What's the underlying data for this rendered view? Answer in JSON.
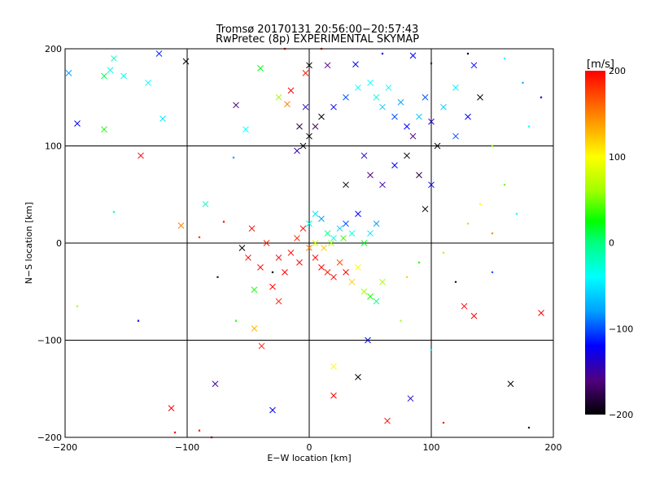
{
  "chart_data": {
    "type": "scatter",
    "title": "Tromsø 20170131 20:56:00−20:57:43",
    "subtitle": "RwPretec (8p) EXPERIMENTAL SKYMAP",
    "xlabel": "E−W location [km]",
    "ylabel": "N−S location [km]",
    "xlim": [
      -200,
      200
    ],
    "ylim": [
      -200,
      200
    ],
    "xticks": [
      -200,
      -100,
      0,
      100,
      200
    ],
    "yticks": [
      -200,
      -100,
      0,
      100,
      200
    ],
    "xtick_labels": [
      "−200",
      "−100",
      "0",
      "100",
      "200"
    ],
    "ytick_labels": [
      "−200",
      "−100",
      "0",
      "100",
      "200"
    ],
    "grid": true,
    "colorbar": {
      "label": "[m/s]",
      "range": [
        -200,
        200
      ],
      "ticks": [
        200,
        100,
        0,
        -100,
        -200
      ],
      "tick_labels": [
        "200",
        "100",
        "0",
        "−100",
        "−200"
      ],
      "colormap": [
        [
          -200,
          "#000000"
        ],
        [
          -160,
          "#500080"
        ],
        [
          -120,
          "#0000ff"
        ],
        [
          -80,
          "#00a0ff"
        ],
        [
          -40,
          "#00ffff"
        ],
        [
          0,
          "#00ff80"
        ],
        [
          25,
          "#00ff00"
        ],
        [
          60,
          "#a0ff00"
        ],
        [
          100,
          "#ffff00"
        ],
        [
          150,
          "#ff8000"
        ],
        [
          200,
          "#ff0000"
        ]
      ]
    },
    "series_note_marker": "x = large cross, . = small mark",
    "points": [
      [
        -197,
        175,
        -80,
        "x"
      ],
      [
        -190,
        123,
        -120,
        "x"
      ],
      [
        -160,
        190,
        -20,
        "x"
      ],
      [
        -168,
        172,
        10,
        "x"
      ],
      [
        -163,
        178,
        -30,
        "x"
      ],
      [
        -152,
        172,
        -40,
        "x"
      ],
      [
        -132,
        165,
        -40,
        "x"
      ],
      [
        -123,
        195,
        -110,
        "x"
      ],
      [
        -120,
        128,
        -50,
        "x"
      ],
      [
        -168,
        117,
        30,
        "x"
      ],
      [
        -138,
        90,
        200,
        "x"
      ],
      [
        -101,
        187,
        -200,
        "x"
      ],
      [
        -60,
        142,
        -160,
        "x"
      ],
      [
        -52,
        117,
        -40,
        "x"
      ],
      [
        -40,
        180,
        20,
        "x"
      ],
      [
        -25,
        150,
        60,
        "x"
      ],
      [
        -18,
        143,
        150,
        "x"
      ],
      [
        -15,
        157,
        200,
        "x"
      ],
      [
        -3,
        175,
        190,
        "x"
      ],
      [
        0,
        183,
        -200,
        "x"
      ],
      [
        15,
        183,
        -160,
        "x"
      ],
      [
        38,
        184,
        -120,
        "x"
      ],
      [
        85,
        193,
        -120,
        "x"
      ],
      [
        135,
        183,
        -120,
        "x"
      ],
      [
        -113,
        -170,
        200,
        "x"
      ],
      [
        -30,
        -172,
        -120,
        "x"
      ],
      [
        -77,
        -145,
        -150,
        "x"
      ],
      [
        -39,
        -106,
        190,
        "x"
      ],
      [
        -45,
        -88,
        130,
        "x"
      ],
      [
        40,
        -138,
        -200,
        "x"
      ],
      [
        48,
        -100,
        -120,
        "x"
      ],
      [
        83,
        -160,
        -140,
        "x"
      ],
      [
        64,
        -183,
        200,
        "x"
      ],
      [
        20,
        -157,
        200,
        "x"
      ],
      [
        20,
        -127,
        100,
        "x"
      ],
      [
        127,
        -65,
        200,
        "x"
      ],
      [
        135,
        -75,
        200,
        "x"
      ],
      [
        190,
        -72,
        200,
        "x"
      ],
      [
        165,
        -145,
        -200,
        "x"
      ],
      [
        -55,
        -5,
        -200,
        "x"
      ],
      [
        -50,
        -15,
        200,
        "x"
      ],
      [
        -45,
        -48,
        30,
        "x"
      ],
      [
        -30,
        -45,
        200,
        "x"
      ],
      [
        -25,
        -60,
        190,
        "x"
      ],
      [
        -20,
        -30,
        200,
        "x"
      ],
      [
        -15,
        -10,
        200,
        "x"
      ],
      [
        -10,
        5,
        180,
        "x"
      ],
      [
        -5,
        15,
        200,
        "x"
      ],
      [
        0,
        -5,
        150,
        "x"
      ],
      [
        5,
        -15,
        200,
        "x"
      ],
      [
        10,
        -25,
        200,
        "x"
      ],
      [
        15,
        -30,
        190,
        "x"
      ],
      [
        20,
        -35,
        200,
        "x"
      ],
      [
        25,
        -20,
        170,
        "x"
      ],
      [
        30,
        -30,
        200,
        "x"
      ],
      [
        35,
        -40,
        120,
        "x"
      ],
      [
        40,
        -25,
        100,
        "x"
      ],
      [
        45,
        -50,
        60,
        "x"
      ],
      [
        50,
        -55,
        30,
        "x"
      ],
      [
        55,
        -60,
        0,
        "x"
      ],
      [
        0,
        20,
        -30,
        "x"
      ],
      [
        5,
        30,
        -50,
        "x"
      ],
      [
        10,
        25,
        -80,
        "x"
      ],
      [
        15,
        10,
        0,
        "x"
      ],
      [
        20,
        5,
        -40,
        "x"
      ],
      [
        25,
        15,
        -60,
        "x"
      ],
      [
        30,
        20,
        -100,
        "x"
      ],
      [
        35,
        10,
        -30,
        "x"
      ],
      [
        40,
        30,
        -120,
        "x"
      ],
      [
        45,
        0,
        20,
        "x"
      ],
      [
        50,
        10,
        -50,
        "x"
      ],
      [
        55,
        20,
        -80,
        "x"
      ],
      [
        5,
        0,
        80,
        "x"
      ],
      [
        12,
        -5,
        120,
        "x"
      ],
      [
        18,
        0,
        60,
        "x"
      ],
      [
        28,
        5,
        40,
        "x"
      ],
      [
        -8,
        -20,
        200,
        "x"
      ],
      [
        60,
        -40,
        60,
        "x"
      ],
      [
        -5,
        100,
        -200,
        "x"
      ],
      [
        0,
        110,
        -200,
        "x"
      ],
      [
        -10,
        95,
        -150,
        "x"
      ],
      [
        5,
        120,
        -170,
        "x"
      ],
      [
        10,
        130,
        -200,
        "x"
      ],
      [
        20,
        140,
        -120,
        "x"
      ],
      [
        -8,
        120,
        -180,
        "x"
      ],
      [
        -3,
        140,
        -140,
        "x"
      ],
      [
        30,
        150,
        -100,
        "x"
      ],
      [
        40,
        160,
        -40,
        "x"
      ],
      [
        50,
        165,
        -40,
        "x"
      ],
      [
        55,
        150,
        -30,
        "x"
      ],
      [
        60,
        140,
        -60,
        "x"
      ],
      [
        65,
        160,
        -40,
        "x"
      ],
      [
        70,
        130,
        -100,
        "x"
      ],
      [
        75,
        145,
        -80,
        "x"
      ],
      [
        80,
        120,
        -120,
        "x"
      ],
      [
        85,
        110,
        -160,
        "x"
      ],
      [
        90,
        130,
        -60,
        "x"
      ],
      [
        95,
        150,
        -100,
        "x"
      ],
      [
        100,
        125,
        -140,
        "x"
      ],
      [
        110,
        140,
        -60,
        "x"
      ],
      [
        120,
        160,
        -50,
        "x"
      ],
      [
        105,
        100,
        -200,
        "x"
      ],
      [
        60,
        60,
        -150,
        "x"
      ],
      [
        70,
        80,
        -120,
        "x"
      ],
      [
        80,
        90,
        -200,
        "x"
      ],
      [
        90,
        70,
        -180,
        "x"
      ],
      [
        100,
        60,
        -120,
        "x"
      ],
      [
        95,
        35,
        -200,
        "x"
      ],
      [
        45,
        90,
        -140,
        "x"
      ],
      [
        50,
        70,
        -160,
        "x"
      ],
      [
        30,
        60,
        -200,
        "x"
      ],
      [
        120,
        110,
        -100,
        "x"
      ],
      [
        140,
        150,
        -200,
        "x"
      ],
      [
        130,
        130,
        -120,
        "x"
      ],
      [
        -85,
        40,
        -20,
        "x"
      ],
      [
        -105,
        18,
        150,
        "x"
      ],
      [
        -47,
        15,
        200,
        "x"
      ],
      [
        -40,
        -25,
        200,
        "x"
      ],
      [
        -35,
        0,
        190,
        "x"
      ],
      [
        -25,
        -15,
        200,
        "x"
      ],
      [
        -190,
        -65,
        60,
        "."
      ],
      [
        -160,
        32,
        0,
        "."
      ],
      [
        -140,
        -80,
        -120,
        "."
      ],
      [
        -110,
        -195,
        200,
        "."
      ],
      [
        -90,
        -193,
        200,
        "."
      ],
      [
        -80,
        -200,
        200,
        "."
      ],
      [
        -62,
        88,
        -80,
        "."
      ],
      [
        -75,
        -35,
        -200,
        "."
      ],
      [
        -70,
        22,
        200,
        "."
      ],
      [
        -90,
        6,
        190,
        "."
      ],
      [
        -60,
        -80,
        30,
        "."
      ],
      [
        -30,
        -30,
        -200,
        "."
      ],
      [
        75,
        -80,
        60,
        "."
      ],
      [
        100,
        -110,
        -40,
        "."
      ],
      [
        110,
        -185,
        200,
        "."
      ],
      [
        120,
        -40,
        -200,
        "."
      ],
      [
        150,
        -30,
        -100,
        "."
      ],
      [
        180,
        -190,
        -200,
        "."
      ],
      [
        150,
        100,
        60,
        "."
      ],
      [
        160,
        60,
        40,
        "."
      ],
      [
        170,
        30,
        -40,
        "."
      ],
      [
        180,
        120,
        -40,
        "."
      ],
      [
        190,
        150,
        -120,
        "."
      ],
      [
        175,
        165,
        -80,
        "."
      ],
      [
        140,
        40,
        100,
        "."
      ],
      [
        130,
        20,
        60,
        "."
      ],
      [
        150,
        10,
        150,
        "."
      ],
      [
        110,
        -10,
        60,
        "."
      ],
      [
        90,
        -20,
        30,
        "."
      ],
      [
        80,
        -35,
        120,
        "."
      ],
      [
        -20,
        200,
        200,
        "."
      ],
      [
        10,
        200,
        200,
        "."
      ],
      [
        60,
        195,
        -120,
        "."
      ],
      [
        100,
        185,
        -160,
        "."
      ],
      [
        130,
        195,
        -200,
        "."
      ],
      [
        160,
        190,
        -40,
        "."
      ]
    ]
  }
}
